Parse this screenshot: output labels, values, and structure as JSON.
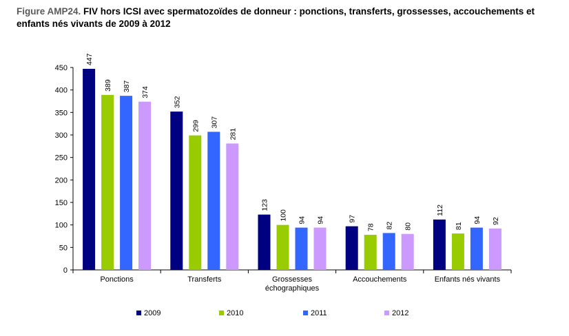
{
  "title_prefix": "Figure AMP24.",
  "title_main": "FIV hors ICSI avec spermatozoïdes de donneur : ponctions, transferts, grossesses, accouchements et enfants nés vivants de 2009 à 2012",
  "chart_data": {
    "type": "bar",
    "categories": [
      [
        "Ponctions"
      ],
      [
        "Transferts"
      ],
      [
        "Grossesses",
        "échographiques"
      ],
      [
        "Accouchements"
      ],
      [
        "Enfants nés vivants"
      ]
    ],
    "series": [
      {
        "name": "2009",
        "color": "#000080",
        "values": [
          447,
          352,
          123,
          97,
          112
        ]
      },
      {
        "name": "2010",
        "color": "#99CC00",
        "values": [
          389,
          299,
          100,
          78,
          81
        ]
      },
      {
        "name": "2011",
        "color": "#3366FF",
        "values": [
          387,
          307,
          94,
          82,
          94
        ]
      },
      {
        "name": "2012",
        "color": "#CC99FF",
        "values": [
          374,
          281,
          94,
          80,
          92
        ]
      }
    ],
    "ylim": [
      0,
      450
    ],
    "yticks": [
      0,
      50,
      100,
      150,
      200,
      250,
      300,
      350,
      400,
      450
    ],
    "legend_position": "bottom",
    "grid": false
  }
}
